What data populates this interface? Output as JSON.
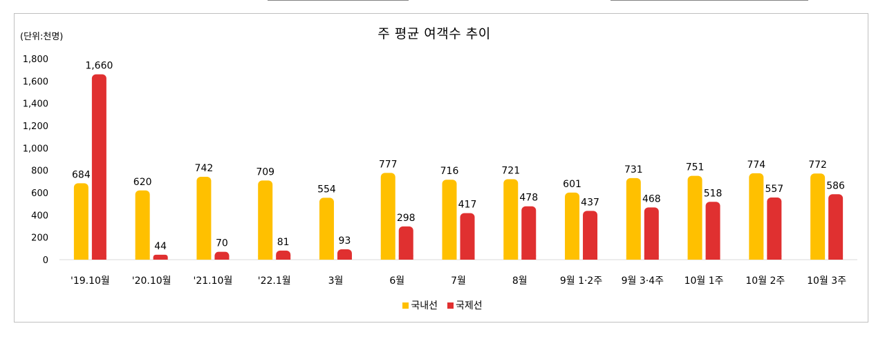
{
  "chart_data": {
    "type": "bar",
    "title": "주 평균 여객수 추이",
    "unit_label": "(단위:천명)",
    "categories": [
      "'19.10월",
      "'20.10월",
      "'21.10월",
      "'22.1월",
      "3월",
      "6월",
      "7월",
      "8월",
      "9월 1·2주",
      "9월 3·4주",
      "10월 1주",
      "10월 2주",
      "10월 3주"
    ],
    "series": [
      {
        "name": "국내선",
        "color": "#ffc000",
        "values": [
          684,
          620,
          742,
          709,
          554,
          777,
          716,
          721,
          601,
          731,
          751,
          774,
          772
        ]
      },
      {
        "name": "국제선",
        "color": "#e03030",
        "values": [
          1660,
          44,
          70,
          81,
          93,
          298,
          417,
          478,
          437,
          468,
          518,
          557,
          586
        ]
      }
    ],
    "ylim": [
      0,
      1800
    ],
    "yticks": [
      "0",
      "200",
      "400",
      "600",
      "800",
      "1,000",
      "1,200",
      "1,400",
      "1,600",
      "1,800"
    ],
    "grid": false,
    "legend_position": "bottom"
  }
}
